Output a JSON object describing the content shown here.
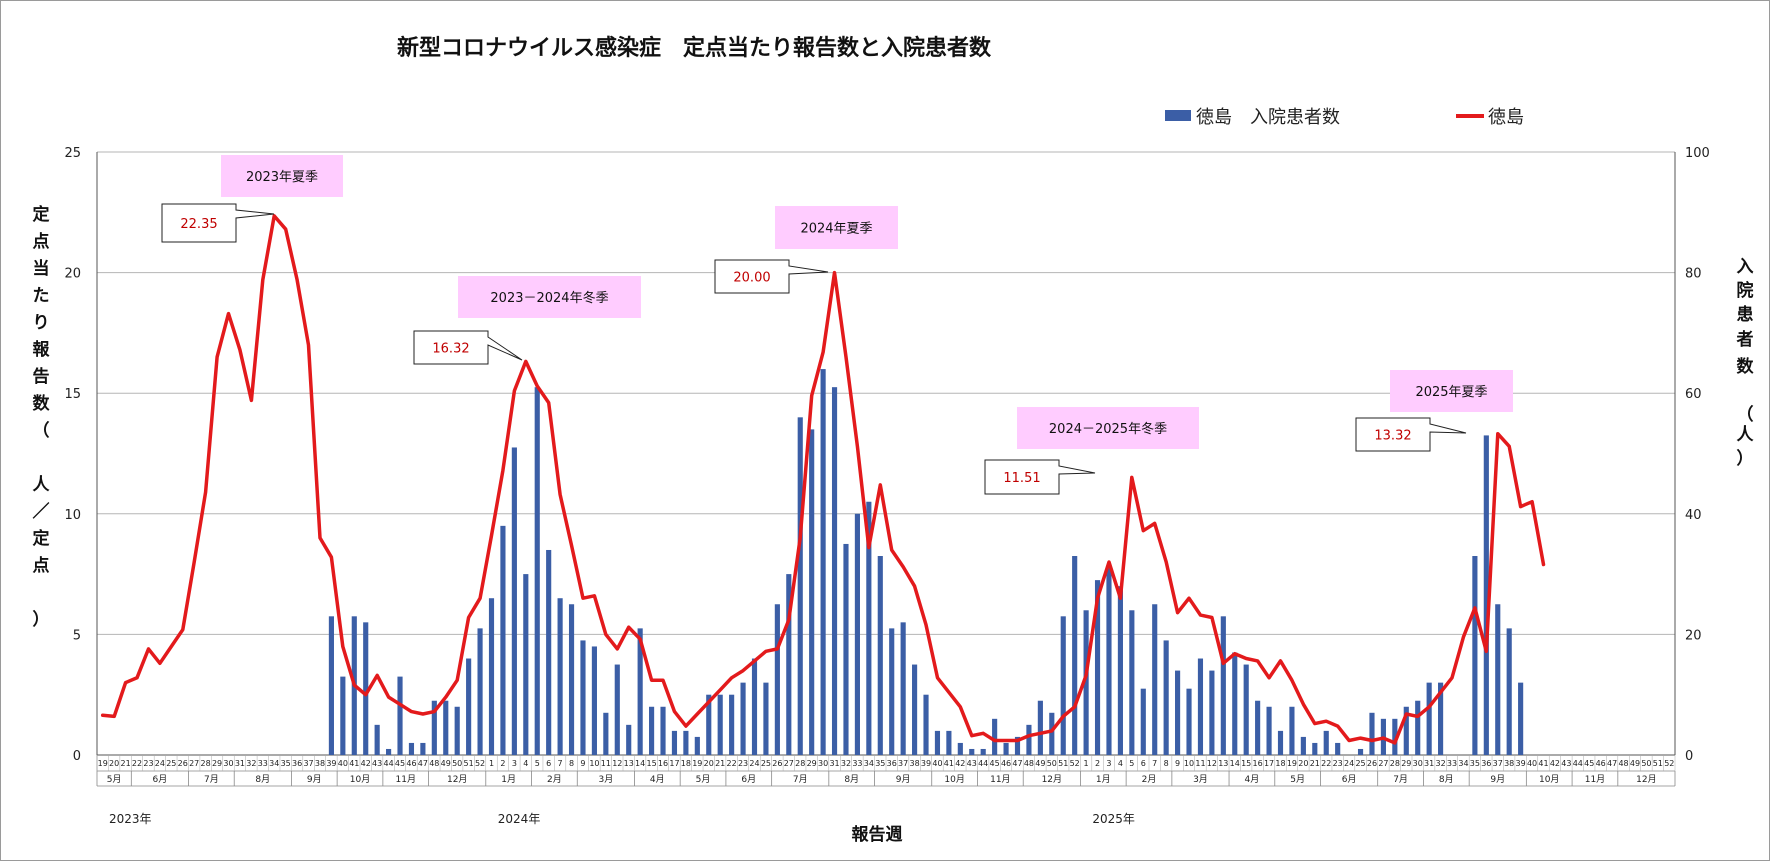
{
  "chart_data": {
    "type": "bar+line",
    "title": "新型コロナウイルス感染症　定点当たり報告数と入院患者数",
    "xlabel": "報告週",
    "ylabel_left": "定点当たり報告数（　人／定点　）",
    "ylabel_right": "入院患者数　（人）",
    "ylim_left": [
      0,
      25
    ],
    "ylim_right": [
      0,
      100
    ],
    "yticks_left": [
      "0",
      "5",
      "10",
      "15",
      "20",
      "25"
    ],
    "yticks_right": [
      "0",
      "20",
      "40",
      "60",
      "80",
      "100"
    ],
    "legend": {
      "bar": "徳島　入院患者数",
      "line": "徳島",
      "placement": "top-right"
    },
    "grid": true,
    "series": [
      {
        "name": "徳島",
        "type": "line",
        "axis": "left",
        "color": "#e31a1c",
        "values": [
          1.65,
          1.6,
          3.0,
          3.2,
          4.4,
          3.8,
          4.5,
          5.2,
          8.0,
          10.9,
          16.5,
          18.3,
          16.8,
          14.7,
          19.7,
          22.35,
          21.8,
          19.7,
          17.0,
          9.0,
          8.2,
          4.5,
          2.9,
          2.5,
          3.3,
          2.4,
          2.1,
          1.8,
          1.7,
          1.8,
          2.4,
          3.1,
          5.7,
          6.5,
          9.1,
          11.8,
          15.1,
          16.32,
          15.3,
          14.6,
          10.8,
          8.7,
          6.5,
          6.6,
          5.0,
          4.4,
          5.3,
          4.8,
          3.1,
          3.1,
          1.8,
          1.2,
          1.7,
          2.2,
          2.7,
          3.2,
          3.5,
          3.9,
          4.3,
          4.4,
          5.6,
          9.0,
          14.9,
          16.7,
          20.0,
          16.5,
          12.8,
          8.6,
          11.2,
          8.5,
          7.8,
          7.0,
          5.4,
          3.2,
          2.6,
          2.0,
          0.8,
          0.9,
          0.6,
          0.6,
          0.6,
          0.8,
          0.9,
          1.0,
          1.6,
          2.0,
          3.3,
          6.5,
          8.0,
          6.5,
          11.51,
          9.3,
          9.6,
          8.0,
          5.9,
          6.5,
          5.8,
          5.7,
          3.8,
          4.2,
          4.0,
          3.9,
          3.2,
          3.9,
          3.1,
          2.1,
          1.3,
          1.4,
          1.2,
          0.6,
          0.7,
          0.6,
          0.7,
          0.5,
          1.7,
          1.6,
          2.0,
          2.6,
          3.2,
          4.9,
          6.1,
          4.3,
          13.32,
          12.8,
          10.3,
          10.5,
          7.9
        ]
      },
      {
        "name": "徳島　入院患者数",
        "type": "bar",
        "axis": "right",
        "color": "#3b5ea6",
        "values": [
          null,
          null,
          null,
          null,
          null,
          null,
          null,
          null,
          null,
          null,
          null,
          null,
          null,
          null,
          null,
          null,
          null,
          null,
          null,
          null,
          23,
          13,
          23,
          22,
          5,
          1,
          13,
          2,
          2,
          9,
          9,
          8,
          16,
          21,
          26,
          38,
          51,
          30,
          61,
          34,
          26,
          25,
          19,
          18,
          7,
          15,
          5,
          21,
          8,
          8,
          4,
          4,
          3,
          10,
          10,
          10,
          12,
          16,
          12,
          25,
          30,
          56,
          54,
          64,
          61,
          35,
          40,
          42,
          33,
          21,
          22,
          15,
          10,
          4,
          4,
          2,
          1,
          1,
          6,
          2,
          3,
          5,
          9,
          7,
          23,
          33,
          24,
          29,
          31,
          28,
          24,
          11,
          25,
          19,
          14,
          11,
          16,
          14,
          23,
          17,
          15,
          9,
          8,
          4,
          8,
          3,
          2,
          4,
          2,
          0,
          1,
          7,
          6,
          6,
          8,
          9,
          12,
          12,
          null,
          null,
          33,
          53,
          25,
          21,
          12
        ]
      }
    ],
    "annotations": [
      {
        "text": "2023年夏季",
        "kind": "season"
      },
      {
        "text": "2023－2024年冬季",
        "kind": "season"
      },
      {
        "text": "2024年夏季",
        "kind": "season"
      },
      {
        "text": "2024－2025年冬季",
        "kind": "season"
      },
      {
        "text": "2025年夏季",
        "kind": "season"
      },
      {
        "text": "22.35",
        "kind": "peak"
      },
      {
        "text": "16.32",
        "kind": "peak"
      },
      {
        "text": "20.00",
        "kind": "peak"
      },
      {
        "text": "11.51",
        "kind": "peak"
      },
      {
        "text": "13.32",
        "kind": "peak"
      }
    ],
    "week_labels": [
      "19",
      "20",
      "21",
      "22",
      "23",
      "24",
      "25",
      "26",
      "27",
      "28",
      "29",
      "30",
      "31",
      "32",
      "33",
      "34",
      "35",
      "36",
      "37",
      "38",
      "39",
      "40",
      "41",
      "42",
      "43",
      "44",
      "45",
      "46",
      "47",
      "48",
      "49",
      "50",
      "51",
      "52",
      "1",
      "2",
      "3",
      "4",
      "5",
      "6",
      "7",
      "8",
      "9",
      "10",
      "11",
      "12",
      "13",
      "14",
      "15",
      "16",
      "17",
      "18",
      "19",
      "20",
      "21",
      "22",
      "23",
      "24",
      "25",
      "26",
      "27",
      "28",
      "29",
      "30",
      "31",
      "32",
      "33",
      "34",
      "35",
      "36",
      "37",
      "38",
      "39",
      "40",
      "41",
      "42",
      "43",
      "44",
      "45",
      "46",
      "47",
      "48",
      "49",
      "50",
      "51",
      "52",
      "1",
      "2",
      "3",
      "4",
      "5",
      "6",
      "7",
      "8",
      "9",
      "10",
      "11",
      "12",
      "13",
      "14",
      "15",
      "16",
      "17",
      "18",
      "19",
      "20",
      "21",
      "22",
      "23",
      "24",
      "25",
      "26",
      "27",
      "28",
      "29",
      "30",
      "31",
      "32",
      "33",
      "34",
      "35",
      "36",
      "37",
      "38",
      "39",
      "40",
      "41",
      "42",
      "43",
      "44",
      "45",
      "46",
      "47",
      "48",
      "49",
      "50",
      "51",
      "52"
    ],
    "month_labels": [
      {
        "label": "5月",
        "start": 0,
        "end": 2
      },
      {
        "label": "6月",
        "start": 3,
        "end": 7
      },
      {
        "label": "7月",
        "start": 8,
        "end": 11
      },
      {
        "label": "8月",
        "start": 12,
        "end": 16
      },
      {
        "label": "9月",
        "start": 17,
        "end": 20
      },
      {
        "label": "10月",
        "start": 21,
        "end": 24
      },
      {
        "label": "11月",
        "start": 25,
        "end": 28
      },
      {
        "label": "12月",
        "start": 29,
        "end": 33
      },
      {
        "label": "1月",
        "start": 34,
        "end": 37
      },
      {
        "label": "2月",
        "start": 38,
        "end": 41
      },
      {
        "label": "3月",
        "start": 42,
        "end": 46
      },
      {
        "label": "4月",
        "start": 47,
        "end": 50
      },
      {
        "label": "5月",
        "start": 51,
        "end": 54
      },
      {
        "label": "6月",
        "start": 55,
        "end": 58
      },
      {
        "label": "7月",
        "start": 59,
        "end": 63
      },
      {
        "label": "8月",
        "start": 64,
        "end": 67
      },
      {
        "label": "9月",
        "start": 68,
        "end": 72
      },
      {
        "label": "10月",
        "start": 73,
        "end": 76
      },
      {
        "label": "11月",
        "start": 77,
        "end": 80
      },
      {
        "label": "12月",
        "start": 81,
        "end": 85
      },
      {
        "label": "1月",
        "start": 86,
        "end": 89
      },
      {
        "label": "2月",
        "start": 90,
        "end": 93
      },
      {
        "label": "3月",
        "start": 94,
        "end": 98
      },
      {
        "label": "4月",
        "start": 99,
        "end": 102
      },
      {
        "label": "5月",
        "start": 103,
        "end": 106
      },
      {
        "label": "6月",
        "start": 107,
        "end": 111
      },
      {
        "label": "7月",
        "start": 112,
        "end": 115
      },
      {
        "label": "8月",
        "start": 116,
        "end": 119
      },
      {
        "label": "9月",
        "start": 120,
        "end": 124
      },
      {
        "label": "10月",
        "start": 125,
        "end": 128
      },
      {
        "label": "11月",
        "start": 129,
        "end": 132
      },
      {
        "label": "12月",
        "start": 133,
        "end": 137
      }
    ],
    "year_labels": [
      {
        "label": "2023年",
        "at": 0
      },
      {
        "label": "2024年",
        "at": 34
      },
      {
        "label": "2025年",
        "at": 86
      }
    ]
  }
}
